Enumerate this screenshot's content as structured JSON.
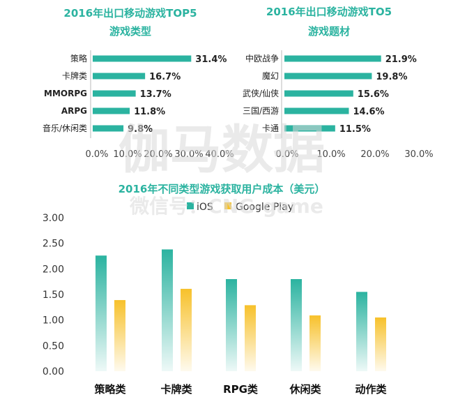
{
  "watermark": {
    "main": "伽马数据",
    "sub": "微信号：CNG-game"
  },
  "colors": {
    "teal": "#2bb3a0",
    "gold": "#f7c12b"
  },
  "chart_data": [
    {
      "id": "genre",
      "type": "bar",
      "orientation": "horizontal",
      "title_line1": "2016年出口移动游戏TOP5",
      "title_line2": "游戏类型",
      "categories": [
        "策略",
        "卡牌类",
        "MMORPG",
        "ARPG",
        "音乐/休闲类"
      ],
      "values": [
        31.4,
        16.7,
        13.7,
        11.8,
        9.8
      ],
      "value_labels": [
        "31.4%",
        "16.7%",
        "13.7%",
        "11.8%",
        "9.8%"
      ],
      "xlim": [
        0,
        40
      ],
      "xticks": [
        "0.0%",
        "10.0%",
        "20.0%",
        "30.0%",
        "40.0%"
      ]
    },
    {
      "id": "theme",
      "type": "bar",
      "orientation": "horizontal",
      "title_line1": "2016年出口移动游戏TO5",
      "title_line2": "游戏题材",
      "categories": [
        "中欧战争",
        "魔幻",
        "武侠/仙侠",
        "三国/西游",
        "卡通"
      ],
      "values": [
        21.9,
        19.8,
        15.6,
        14.6,
        11.5
      ],
      "value_labels": [
        "21.9%",
        "19.8%",
        "15.6%",
        "14.6%",
        "11.5%"
      ],
      "xlim": [
        0,
        30
      ],
      "xticks": [
        "0.0%",
        "10.0%",
        "20.0%",
        "30.0%"
      ]
    },
    {
      "id": "cost",
      "type": "bar",
      "title": "2016年不同类型游戏获取用户成本（美元）",
      "categories": [
        "策略类",
        "卡牌类",
        "RPG类",
        "休闲类",
        "动作类"
      ],
      "series": [
        {
          "name": "iOS",
          "values": [
            2.26,
            2.38,
            1.8,
            1.8,
            1.55
          ]
        },
        {
          "name": "Google Play",
          "values": [
            1.39,
            1.61,
            1.29,
            1.09,
            1.05
          ]
        }
      ],
      "ylim": [
        0,
        3
      ],
      "yticks": [
        "0.00",
        "0.50",
        "1.00",
        "1.50",
        "2.00",
        "2.50",
        "3.00"
      ]
    }
  ]
}
